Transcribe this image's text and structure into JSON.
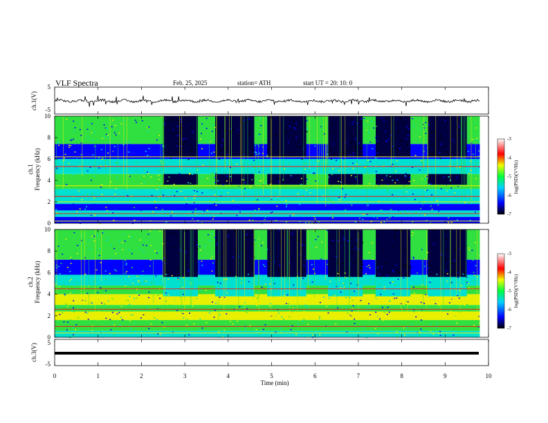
{
  "header": {
    "title": "VLF  Spectra",
    "date": "Feb. 25, 2025",
    "station": "station= ATH",
    "start": "start  UT  =    20: 10: 0"
  },
  "chart_data": [
    {
      "type": "line",
      "panel": "ch1-waveform",
      "ylabel": "ch.1(V)",
      "ylim": [
        -5,
        5
      ],
      "yticks": [
        "5",
        "-5"
      ],
      "xlim": [
        0,
        10
      ],
      "summary": "noisy waveform near 0 V with spikes"
    },
    {
      "type": "heatmap",
      "panel": "ch1-spectrogram",
      "ylabel_top": "ch.1",
      "ylabel": "Frequency  (kHz)",
      "ylim": [
        0,
        10
      ],
      "yticks": [
        "0",
        "2",
        "4",
        "6",
        "8",
        "10"
      ],
      "xlim": [
        0,
        9.8
      ],
      "colorbar": {
        "label": "log(PSD)(V²/Hz)",
        "range": [
          -7,
          -3
        ],
        "ticks": [
          "-3",
          "-4",
          "-5",
          "-6",
          "-7"
        ]
      },
      "dark_intervals_min": [
        [
          2.5,
          3.3
        ],
        [
          3.7,
          4.6
        ],
        [
          4.9,
          5.8
        ],
        [
          6.3,
          7.1
        ],
        [
          7.4,
          8.2
        ],
        [
          8.6,
          9.5
        ]
      ],
      "bands_khz": [
        0.2,
        0.9,
        2.0,
        2.5,
        3.5,
        5.3,
        6.2
      ]
    },
    {
      "type": "heatmap",
      "panel": "ch2-spectrogram",
      "ylabel_top": "ch.2",
      "ylabel": "Frequency  (kHz)",
      "ylim": [
        0,
        10
      ],
      "yticks": [
        "0",
        "2",
        "4",
        "6",
        "8",
        "10"
      ],
      "xlim": [
        0,
        9.8
      ],
      "colorbar": {
        "label": "log(PSD)(V²/Hz)",
        "range": [
          -7,
          -3
        ],
        "ticks": [
          "-3",
          "-4",
          "-5",
          "-6",
          "-7"
        ]
      },
      "dark_intervals_min": [
        [
          2.5,
          3.3
        ],
        [
          3.7,
          4.6
        ],
        [
          4.9,
          5.8
        ],
        [
          6.3,
          7.1
        ],
        [
          7.4,
          8.2
        ],
        [
          8.6,
          9.5
        ]
      ],
      "bands_khz": [
        0.4,
        1.0,
        2.0,
        2.6,
        3.5,
        4.5
      ]
    },
    {
      "type": "line",
      "panel": "ch3-waveform",
      "ylabel": "ch.3(V)",
      "ylim": [
        -5,
        5
      ],
      "yticks": [
        "5",
        "-5"
      ],
      "xlim": [
        0,
        10
      ],
      "summary": "flat trace near -0.5 V"
    }
  ],
  "xaxis": {
    "label": "Time  (min)",
    "ticks": [
      "0",
      "1",
      "2",
      "3",
      "4",
      "5",
      "6",
      "7",
      "8",
      "9",
      "10"
    ]
  },
  "colors": {
    "dark": "#000040",
    "blue": "#0000ff",
    "cyan": "#00e0d0",
    "green": "#30e040",
    "yellow": "#e8f000",
    "red": "#ff1010"
  }
}
